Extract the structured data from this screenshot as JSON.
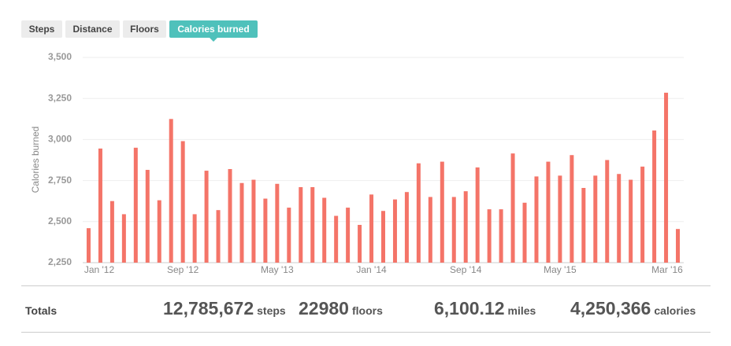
{
  "tabs": [
    {
      "label": "Steps",
      "active": false
    },
    {
      "label": "Distance",
      "active": false
    },
    {
      "label": "Floors",
      "active": false
    },
    {
      "label": "Calories burned",
      "active": true
    }
  ],
  "chart_data": {
    "type": "bar",
    "y_label": "Calories burned",
    "color": "#f47468",
    "categories": [
      "Jan '12",
      null,
      null,
      null,
      null,
      null,
      null,
      null,
      "Sep '12",
      null,
      null,
      null,
      null,
      null,
      null,
      null,
      "May '13",
      null,
      null,
      null,
      null,
      null,
      null,
      null,
      "Jan '14",
      null,
      null,
      null,
      null,
      null,
      null,
      null,
      "Sep '14",
      null,
      null,
      null,
      null,
      null,
      null,
      null,
      "May '15",
      null,
      null,
      null,
      null,
      null,
      null,
      null,
      null,
      null,
      "Mar '16"
    ],
    "values": [
      2460,
      2945,
      2625,
      2545,
      2950,
      2815,
      2630,
      3125,
      2990,
      2545,
      2810,
      2570,
      2820,
      2735,
      2755,
      2640,
      2730,
      2585,
      2710,
      2710,
      2645,
      2535,
      2585,
      2480,
      2665,
      2565,
      2635,
      2680,
      2855,
      2650,
      2865,
      2650,
      2685,
      2830,
      2575,
      2575,
      2915,
      2615,
      2775,
      2865,
      2780,
      2905,
      2705,
      2780,
      2875,
      2790,
      2755,
      2835,
      3055,
      3285,
      2455
    ],
    "ylim": [
      2250,
      3500
    ],
    "yticks": [
      {
        "value": 2250,
        "label": "2,250"
      },
      {
        "value": 2500,
        "label": "2,500"
      },
      {
        "value": 2750,
        "label": "2,750"
      },
      {
        "value": 3000,
        "label": "3,000"
      },
      {
        "value": 3250,
        "label": "3,250"
      },
      {
        "value": 3500,
        "label": "3,500"
      }
    ],
    "grid": true
  },
  "totals": {
    "label": "Totals",
    "items": [
      {
        "value": "12,785,672",
        "unit": "steps"
      },
      {
        "value": "22980",
        "unit": "floors"
      },
      {
        "value": "6,100.12",
        "unit": "miles"
      },
      {
        "value": "4,250,366",
        "unit": "calories"
      }
    ]
  }
}
